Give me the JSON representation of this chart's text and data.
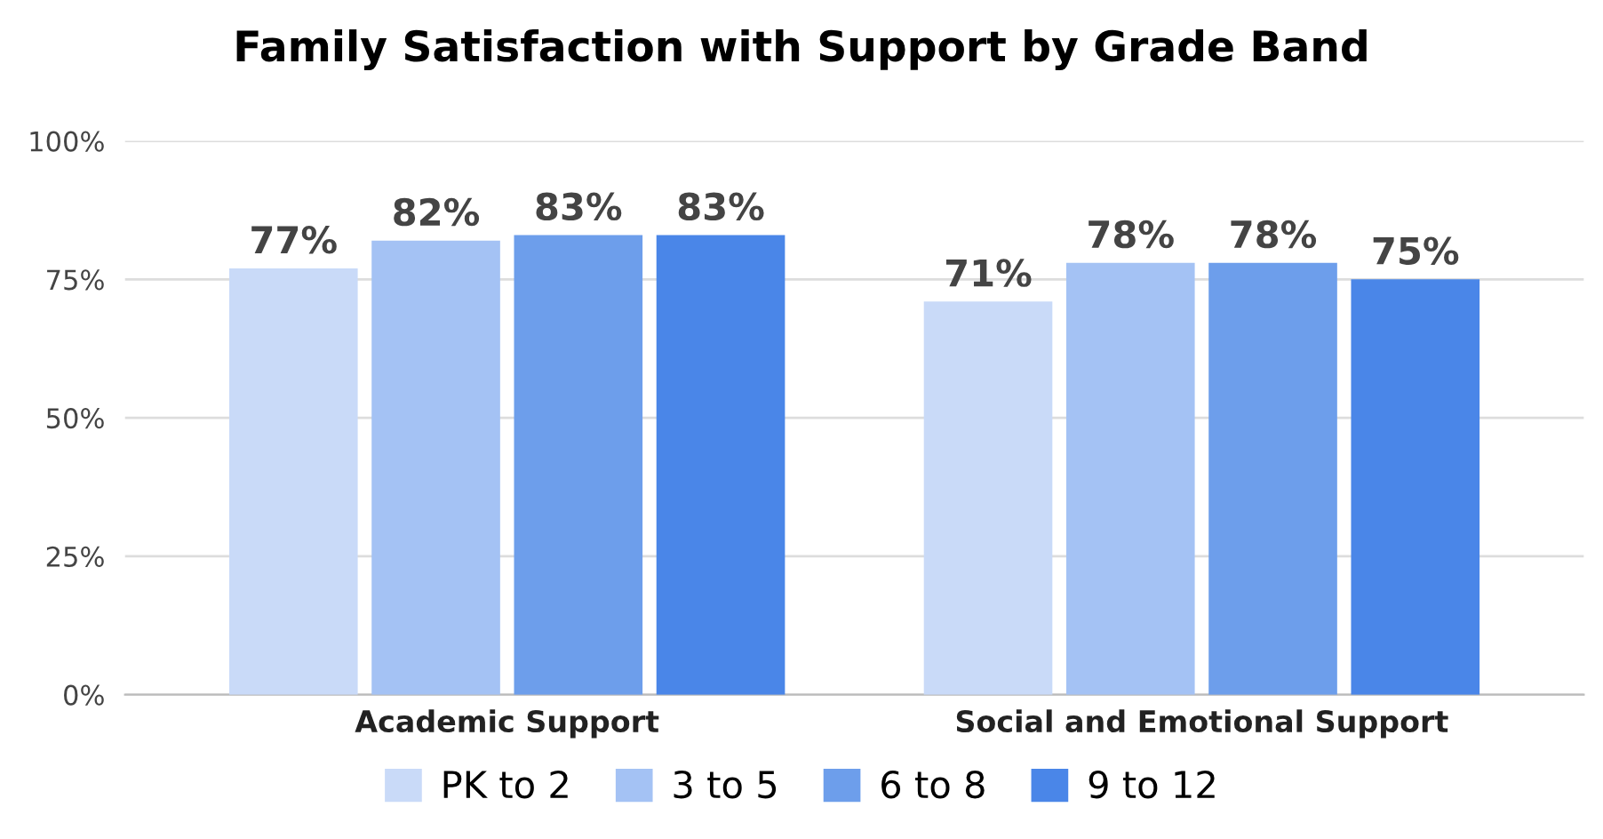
{
  "chart_data": {
    "type": "bar",
    "title": "Family Satisfaction with Support by Grade Band",
    "categories": [
      "Academic Support",
      "Social and Emotional Support"
    ],
    "series": [
      {
        "name": "PK to 2",
        "color": "#c9daf8",
        "values": [
          77,
          71
        ],
        "value_labels": [
          "77%",
          "71%"
        ]
      },
      {
        "name": "3 to 5",
        "color": "#a4c2f4",
        "values": [
          82,
          78
        ],
        "value_labels": [
          "82%",
          "78%"
        ]
      },
      {
        "name": "6 to 8",
        "color": "#6d9eeb",
        "values": [
          83,
          78
        ],
        "value_labels": [
          "83%",
          "78%"
        ]
      },
      {
        "name": "9 to 12",
        "color": "#4a86e8",
        "values": [
          83,
          75
        ],
        "value_labels": [
          "83%",
          "75%"
        ]
      }
    ],
    "ylim": [
      0,
      100
    ],
    "yticks": [
      {
        "value": 0,
        "label": "0%"
      },
      {
        "value": 25,
        "label": "25%"
      },
      {
        "value": 50,
        "label": "50%"
      },
      {
        "value": 75,
        "label": "75%"
      },
      {
        "value": 100,
        "label": "100%"
      }
    ],
    "grid": "y",
    "legend": "bottom"
  }
}
